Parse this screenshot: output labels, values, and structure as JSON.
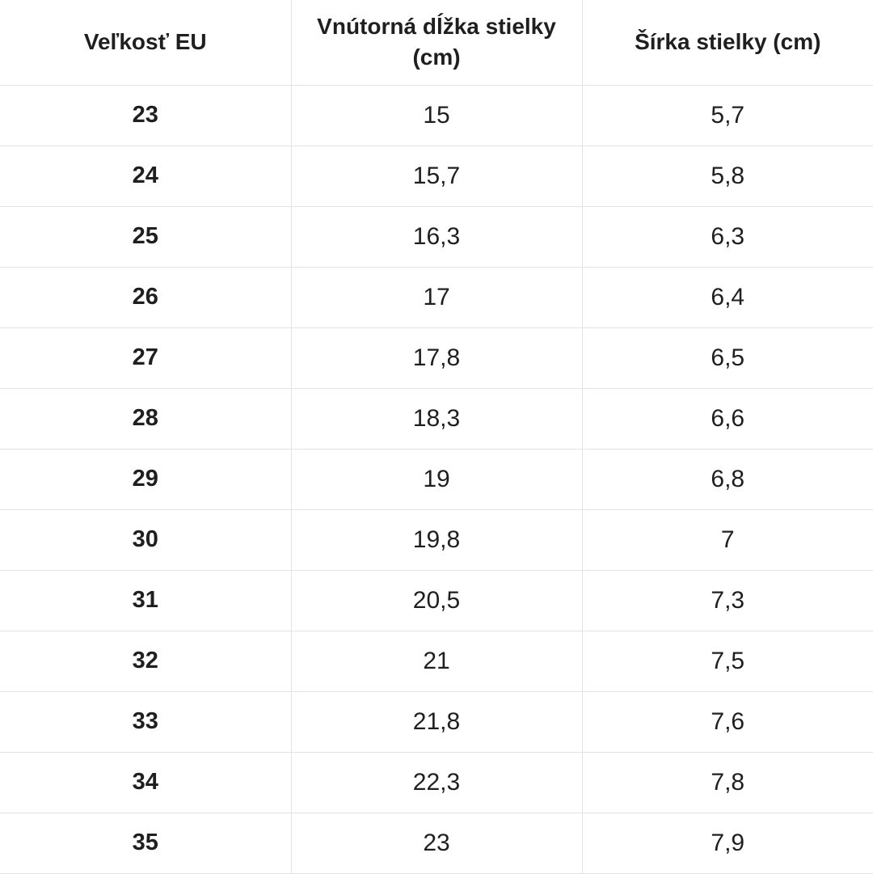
{
  "chart_data": {
    "type": "table",
    "columns": [
      "Veľkosť EU",
      "Vnútorná dĺžka stielky (cm)",
      "Šírka stielky (cm)"
    ],
    "rows": [
      [
        "23",
        "15",
        "5,7"
      ],
      [
        "24",
        "15,7",
        "5,8"
      ],
      [
        "25",
        "16,3",
        "6,3"
      ],
      [
        "26",
        "17",
        "6,4"
      ],
      [
        "27",
        "17,8",
        "6,5"
      ],
      [
        "28",
        "18,3",
        "6,6"
      ],
      [
        "29",
        "19",
        "6,8"
      ],
      [
        "30",
        "19,8",
        "7"
      ],
      [
        "31",
        "20,5",
        "7,3"
      ],
      [
        "32",
        "21",
        "7,5"
      ],
      [
        "33",
        "21,8",
        "7,6"
      ],
      [
        "34",
        "22,3",
        "7,8"
      ],
      [
        "35",
        "23",
        "7,9"
      ]
    ]
  },
  "colors": {
    "text": "#1f1f1f",
    "border": "#e3e3e3",
    "background": "#ffffff"
  }
}
